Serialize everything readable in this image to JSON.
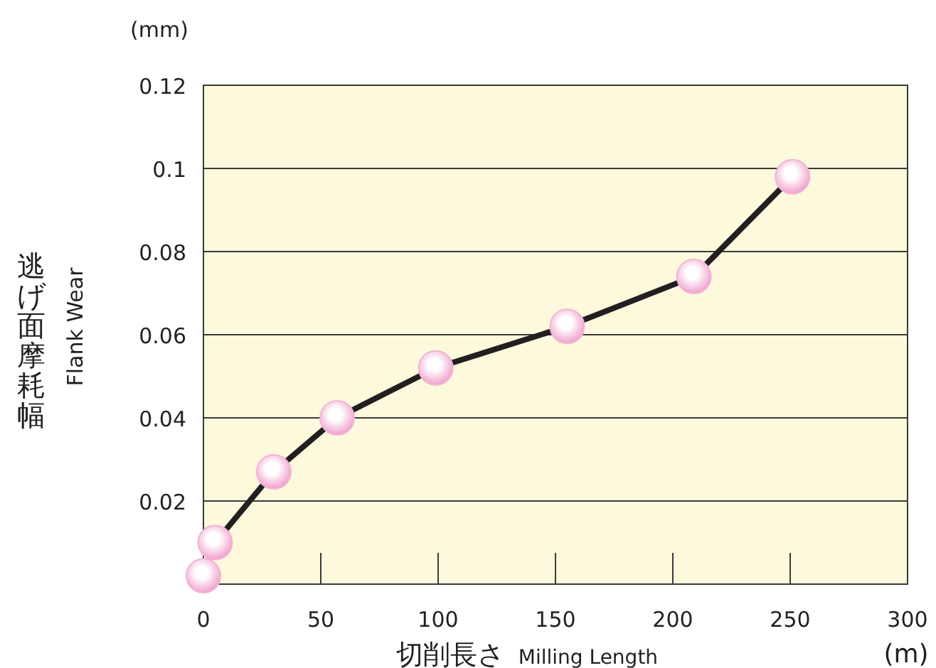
{
  "chart_data": {
    "type": "line",
    "x": [
      0,
      5,
      30,
      57,
      99,
      155,
      209,
      251
    ],
    "series": [
      {
        "color": "#231f20",
        "values": [
          0.002,
          0.01,
          0.027,
          0.04,
          0.052,
          0.062,
          0.074,
          0.098
        ]
      }
    ],
    "xlabel": "切削長さ Milling Length",
    "ylabel": "逃げ面摩耗幅 Flank Wear",
    "annotations": [
      "(mm)",
      "(m)"
    ],
    "xlim": [
      0,
      300
    ],
    "xticks": [
      0,
      50,
      100,
      150,
      200,
      250,
      300
    ],
    "ylim": [
      0,
      0.12
    ],
    "yticks": [
      0.02,
      0.04,
      0.06,
      0.08,
      0.1,
      0.12
    ],
    "grid": "y",
    "marker": "circle",
    "line_style": "solid"
  }
}
